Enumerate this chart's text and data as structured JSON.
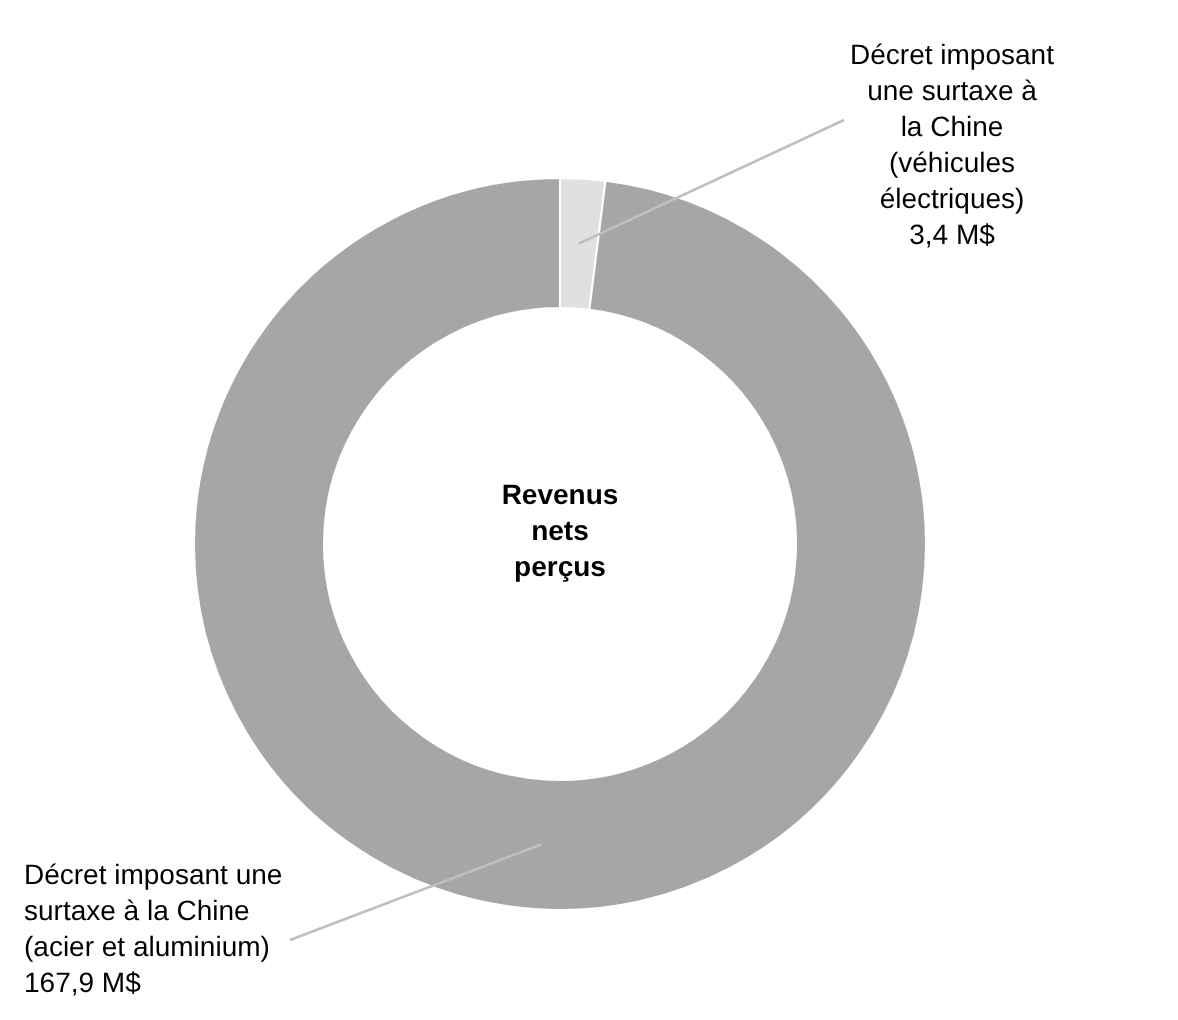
{
  "chart_data": {
    "type": "donut",
    "title": "Revenus nets perçus",
    "categories": [
      "Décret imposant une surtaxe à la Chine (véhicules électriques)",
      "Décret imposant une surtaxe à la Chine (acier et aluminium)"
    ],
    "values": [
      3.4,
      167.9
    ],
    "colors": [
      "#e0e0e0",
      "#a6a6a6"
    ],
    "value_labels": [
      "3,4 M$",
      "167,9 M$"
    ],
    "legend": false
  }
}
